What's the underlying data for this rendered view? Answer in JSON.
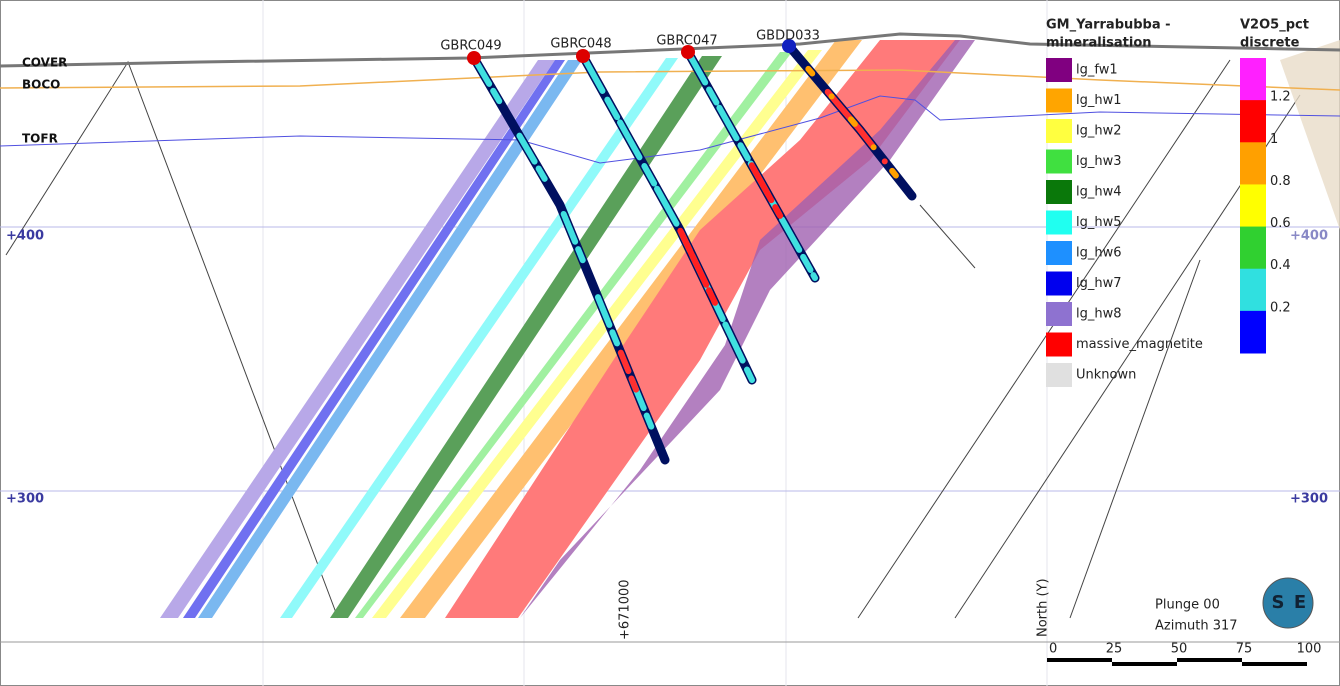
{
  "section_labels": [
    "COVER",
    "BOCO",
    "TOFR"
  ],
  "drillholes": [
    "GBRC049",
    "GBRC048",
    "GBRC047",
    "GBDD033"
  ],
  "elevation_labels": {
    "left": [
      "+400",
      "+300"
    ],
    "right": [
      "+400",
      "+300"
    ]
  },
  "easting_label": "+671000",
  "legend": {
    "title_lines": [
      "GM_Yarrabubba -",
      "mineralisation"
    ],
    "items": [
      {
        "label": "lg_fw1",
        "color": "#800080"
      },
      {
        "label": "lg_hw1",
        "color": "#ffa500"
      },
      {
        "label": "lg_hw2",
        "color": "#ffff40"
      },
      {
        "label": "lg_hw3",
        "color": "#40e040"
      },
      {
        "label": "lg_hw4",
        "color": "#0a780a"
      },
      {
        "label": "lg_hw5",
        "color": "#20fff0"
      },
      {
        "label": "lg_hw6",
        "color": "#1e90ff"
      },
      {
        "label": "lg_hw7",
        "color": "#0000ee"
      },
      {
        "label": "lg_hw8",
        "color": "#8e72d0"
      },
      {
        "label": "massive_magnetite",
        "color": "#ff0000"
      },
      {
        "label": "Unknown",
        "color": "#e0e0e0"
      }
    ]
  },
  "color_scale": {
    "title_lines": [
      "V2O5_pct",
      "discrete"
    ],
    "colors": [
      "#ff20ff",
      "#ff0000",
      "#ffa000",
      "#ffff00",
      "#30d030",
      "#30e0e0",
      "#0000ff"
    ],
    "labels": [
      "1.2",
      "1",
      "0.8",
      "0.6",
      "0.4",
      "0.2"
    ]
  },
  "view": {
    "plunge": "Plunge 00",
    "azimuth": "Azimuth 317"
  },
  "north_label": "North (Y)",
  "scale_bar": [
    "0",
    "25",
    "50",
    "75",
    "100"
  ],
  "logo": [
    "S",
    "E"
  ]
}
